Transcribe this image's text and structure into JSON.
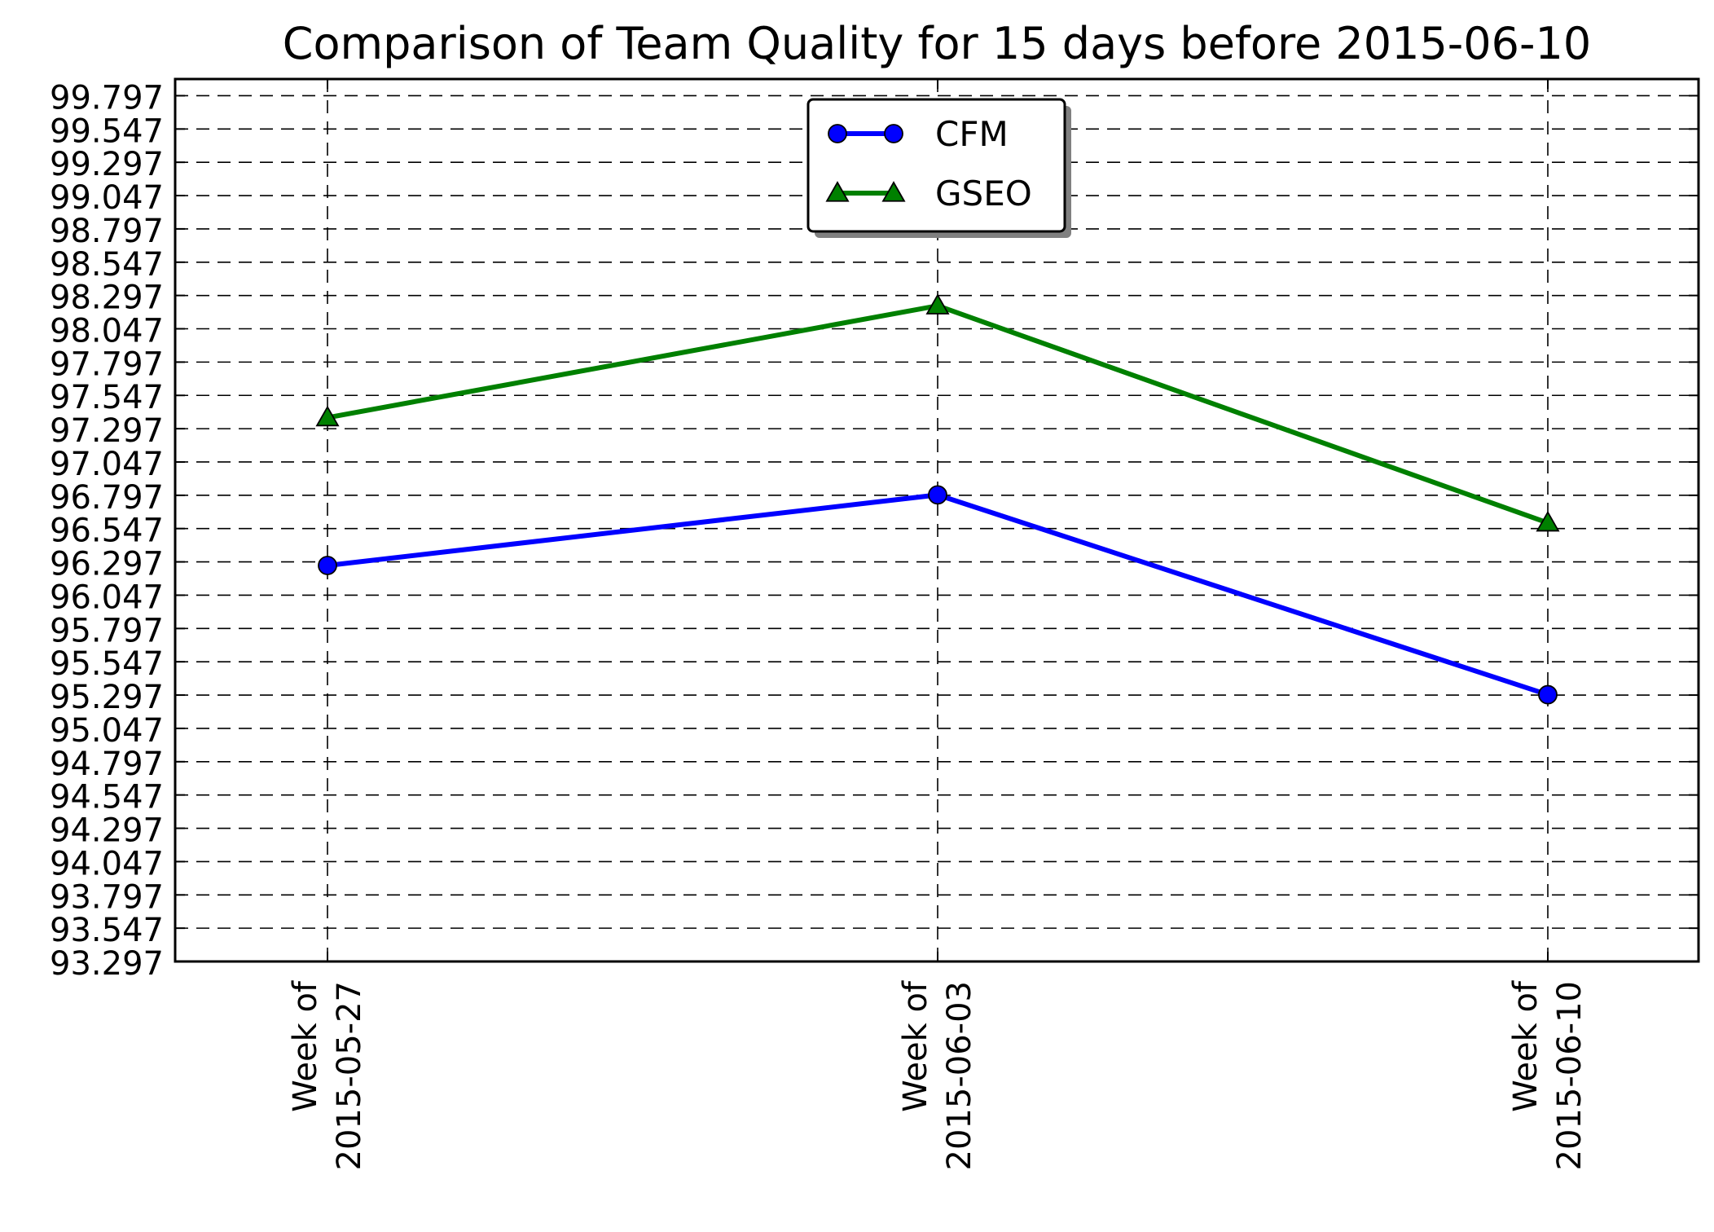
{
  "chart_data": {
    "type": "line",
    "title": "Comparison of Team Quality for 15 days before 2015-06-10",
    "xlabel": "",
    "ylabel": "",
    "categories": [
      [
        "Week of",
        "2015-05-27"
      ],
      [
        "Week of",
        "2015-06-03"
      ],
      [
        "Week of",
        "2015-06-10"
      ]
    ],
    "ylim": [
      93.297,
      99.922
    ],
    "yticks": [
      "93.297",
      "93.547",
      "93.797",
      "94.047",
      "94.297",
      "94.547",
      "94.797",
      "95.047",
      "95.297",
      "95.547",
      "95.797",
      "96.047",
      "96.297",
      "96.547",
      "96.797",
      "97.047",
      "97.297",
      "97.547",
      "97.797",
      "98.047",
      "98.297",
      "98.547",
      "98.797",
      "99.047",
      "99.297",
      "99.547",
      "99.797"
    ],
    "grid": true,
    "legend_position": "top-center",
    "series": [
      {
        "name": "CFM",
        "values": [
          96.27,
          96.8,
          95.3
        ],
        "color": "#0000ff",
        "marker": "circle"
      },
      {
        "name": "GSEO",
        "values": [
          97.38,
          98.22,
          96.59
        ],
        "color": "#008000",
        "marker": "triangle"
      }
    ]
  }
}
